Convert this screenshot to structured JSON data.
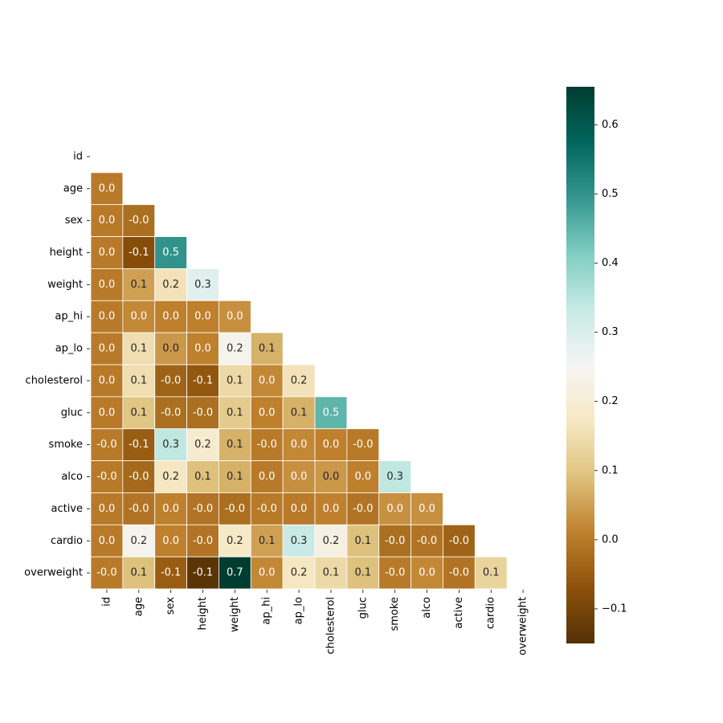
{
  "chart_data": {
    "type": "heatmap",
    "mask": "upper-triangle-including-diagonal",
    "variables": [
      "id",
      "age",
      "sex",
      "height",
      "weight",
      "ap_hi",
      "ap_lo",
      "cholesterol",
      "gluc",
      "smoke",
      "alco",
      "active",
      "cardio",
      "overweight"
    ],
    "value_format": "%.1f",
    "values": [
      [
        null,
        null,
        null,
        null,
        null,
        null,
        null,
        null,
        null,
        null,
        null,
        null,
        null,
        null
      ],
      [
        0.0,
        null,
        null,
        null,
        null,
        null,
        null,
        null,
        null,
        null,
        null,
        null,
        null,
        null
      ],
      [
        0.0,
        -0.02,
        null,
        null,
        null,
        null,
        null,
        null,
        null,
        null,
        null,
        null,
        null,
        null
      ],
      [
        0.0,
        -0.08,
        0.5,
        null,
        null,
        null,
        null,
        null,
        null,
        null,
        null,
        null,
        null,
        null
      ],
      [
        0.0,
        0.05,
        0.16,
        0.29,
        null,
        null,
        null,
        null,
        null,
        null,
        null,
        null,
        null,
        null
      ],
      [
        0.0,
        0.02,
        0.01,
        0.01,
        0.03,
        null,
        null,
        null,
        null,
        null,
        null,
        null,
        null,
        null
      ],
      [
        0.0,
        0.15,
        0.04,
        0.01,
        0.24,
        0.07,
        null,
        null,
        null,
        null,
        null,
        null,
        null,
        null
      ],
      [
        0.0,
        0.15,
        -0.04,
        -0.06,
        0.14,
        0.02,
        0.16,
        null,
        null,
        null,
        null,
        null,
        null,
        null
      ],
      [
        0.0,
        0.1,
        -0.02,
        -0.02,
        0.11,
        0.01,
        0.07,
        0.45,
        null,
        null,
        null,
        null,
        null,
        null
      ],
      [
        -0.0,
        -0.05,
        0.34,
        0.19,
        0.07,
        -0.0,
        0.02,
        0.01,
        -0.0,
        null,
        null,
        null,
        null,
        null
      ],
      [
        -0.0,
        -0.03,
        0.17,
        0.09,
        0.07,
        0.0,
        0.03,
        0.04,
        0.01,
        0.34,
        null,
        null,
        null,
        null
      ],
      [
        0.0,
        -0.01,
        0.01,
        -0.01,
        -0.02,
        -0.0,
        0.0,
        0.01,
        -0.01,
        0.03,
        0.03,
        null,
        null,
        null
      ],
      [
        0.0,
        0.24,
        0.01,
        -0.01,
        0.18,
        0.05,
        0.33,
        0.22,
        0.09,
        -0.02,
        -0.01,
        -0.04,
        null,
        null
      ],
      [
        -0.0,
        0.09,
        -0.05,
        -0.14,
        0.66,
        0.02,
        0.17,
        0.14,
        0.09,
        -0.0,
        0.02,
        -0.01,
        0.13,
        null
      ]
    ],
    "colormap": "BrBG",
    "vmin": -0.15,
    "vmax": 0.655,
    "colorbar": {
      "ticks": [
        -0.1,
        0.0,
        0.1,
        0.2,
        0.3,
        0.4,
        0.5,
        0.6
      ],
      "tick_labels": [
        "−0.1",
        "0.0",
        "0.1",
        "0.2",
        "0.3",
        "0.4",
        "0.5",
        "0.6"
      ]
    },
    "xlabel": "",
    "ylabel": "",
    "title": ""
  }
}
